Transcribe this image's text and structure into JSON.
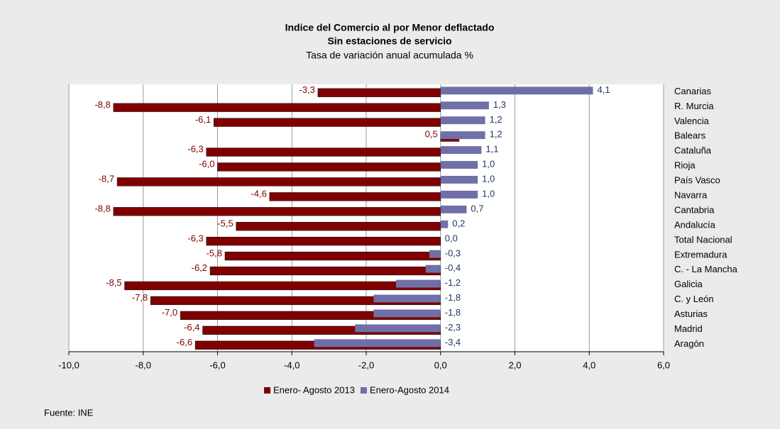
{
  "chart_data": {
    "type": "barh",
    "title": "Indice del Comercio al por Menor deflactado",
    "subtitle": [
      "Sin estaciones de servicio",
      "Tasa de variación anual acumulada %"
    ],
    "source": "Fuente: INE",
    "categories": [
      "Canarias",
      "R. Murcia",
      "Valencia",
      "Balears",
      "Cataluña",
      "Rioja",
      "País Vasco",
      "Navarra",
      "Cantabria",
      "Andalucía",
      "Total Nacional",
      "Extremadura",
      "C. - La Mancha",
      "Galicia",
      "C. y León",
      "Asturias",
      "Madrid",
      "Aragón"
    ],
    "series": [
      {
        "name": "Enero- Agosto 2013",
        "color": "#800000",
        "values": [
          -3.3,
          -8.8,
          -6.1,
          0.5,
          -6.3,
          -6.0,
          -8.7,
          -4.6,
          -8.8,
          -5.5,
          -6.3,
          -5.8,
          -6.2,
          -8.5,
          -7.8,
          -7.0,
          -6.4,
          -6.6
        ],
        "value_labels": [
          "-3,3",
          "-8,8",
          "-6,1",
          "0,5",
          "-6,3",
          "-6,0",
          "-8,7",
          "-4,6",
          "-8,8",
          "-5,5",
          "-6,3",
          "-5,8",
          "-6,2",
          "-8,5",
          "-7,8",
          "-7,0",
          "-6,4",
          "-6,6"
        ]
      },
      {
        "name": "Enero-Agosto 2014",
        "color": "#7070a8",
        "values": [
          4.1,
          1.3,
          1.2,
          1.2,
          1.1,
          1.0,
          1.0,
          1.0,
          0.7,
          0.2,
          0.0,
          -0.3,
          -0.4,
          -1.2,
          -1.8,
          -1.8,
          -2.3,
          -3.4
        ],
        "value_labels": [
          "4,1",
          "1,3",
          "1,2",
          "1,2",
          "1,1",
          "1,0",
          "1,0",
          "1,0",
          "0,7",
          "0,2",
          "0,0",
          "-0,3",
          "-0,4",
          "-1,2",
          "-1,8",
          "-1,8",
          "-2,3",
          "-3,4"
        ]
      }
    ],
    "xlim": [
      -10,
      6
    ],
    "xticks": [
      {
        "value": -10,
        "label": "-10,0"
      },
      {
        "value": -8,
        "label": "-8,0"
      },
      {
        "value": -6,
        "label": "-6,0"
      },
      {
        "value": -4,
        "label": "-4,0"
      },
      {
        "value": -2,
        "label": "-2,0"
      },
      {
        "value": 0,
        "label": "0,0"
      },
      {
        "value": 2,
        "label": "2,0"
      },
      {
        "value": 4,
        "label": "4,0"
      },
      {
        "value": 6,
        "label": "6,0"
      }
    ],
    "grid": true,
    "legend": "bottom"
  }
}
